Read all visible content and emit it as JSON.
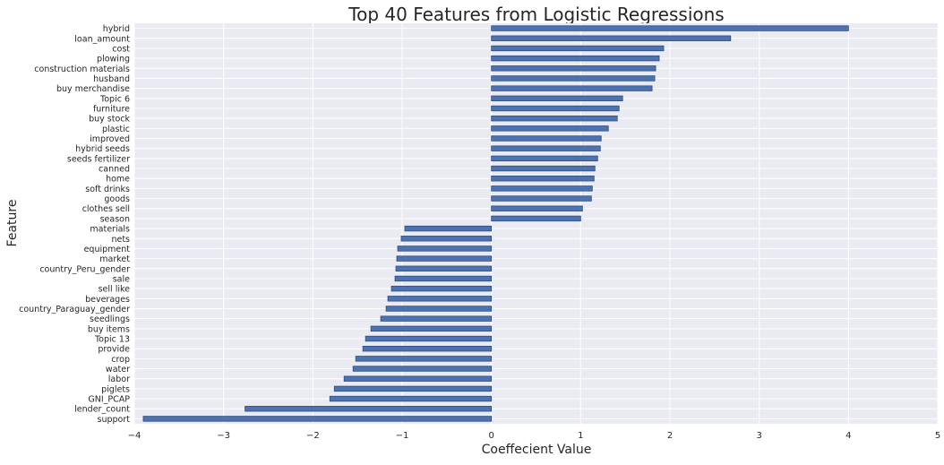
{
  "chart_data": {
    "type": "bar",
    "orientation": "horizontal",
    "title": "Top 40 Features from Logistic Regressions",
    "xlabel": "Coeffecient Value",
    "ylabel": "Feature",
    "xlim": [
      -4,
      5
    ],
    "xticks": [
      -4,
      -3,
      -2,
      -1,
      0,
      1,
      2,
      3,
      4,
      5
    ],
    "xtick_labels": [
      "−4",
      "−3",
      "−2",
      "−1",
      "0",
      "1",
      "2",
      "3",
      "4",
      "5"
    ],
    "grid": true,
    "legend": "none",
    "categories": [
      "hybrid",
      "loan_amount",
      "cost",
      "plowing",
      "construction materials",
      "husband",
      "buy merchandise",
      "Topic 6",
      "furniture",
      "buy stock",
      "plastic",
      "improved",
      "hybrid seeds",
      "seeds fertilizer",
      "canned",
      "home",
      "soft drinks",
      "goods",
      "clothes sell",
      "season",
      "materials",
      "nets",
      "equipment",
      "market",
      "country_Peru_gender",
      "sale",
      "sell like",
      "beverages",
      "country_Paraguay_gender",
      "seedlings",
      "buy items",
      "Topic 13",
      "provide",
      "crop",
      "water",
      "labor",
      "piglets",
      "GNI_PCAP",
      "lender_count",
      "support"
    ],
    "values": [
      4.0,
      2.68,
      1.93,
      1.88,
      1.84,
      1.83,
      1.8,
      1.47,
      1.43,
      1.41,
      1.31,
      1.23,
      1.22,
      1.19,
      1.16,
      1.15,
      1.13,
      1.12,
      1.02,
      1.0,
      -0.97,
      -1.01,
      -1.05,
      -1.06,
      -1.07,
      -1.08,
      -1.12,
      -1.16,
      -1.18,
      -1.24,
      -1.35,
      -1.41,
      -1.44,
      -1.52,
      -1.55,
      -1.65,
      -1.76,
      -1.81,
      -2.76,
      -3.9
    ],
    "colors": {
      "bar": "#4C72B0",
      "bar_edge": "#2f4d80",
      "plot_bg": "#EAEAF2",
      "grid": "#ffffff",
      "text": "#262626"
    }
  }
}
